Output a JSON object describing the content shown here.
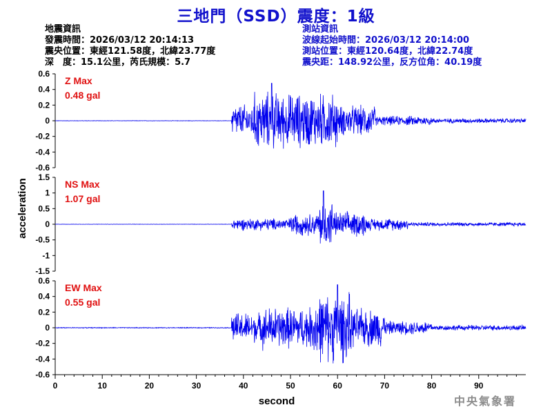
{
  "title": "三地門（SSD）震度：1級",
  "quake_info": {
    "heading": "地震資訊",
    "origin_time": "發震時間：2026/03/12 20:14:13",
    "epicenter": "震央位置：東經121.58度，北緯23.77度",
    "depth_mag": "深　度：15.1公里，芮氏規模：5.7"
  },
  "station_info": {
    "heading": "測站資訊",
    "wave_start": "波線起始時間：2026/03/12 20:14:00",
    "location": "測站位置：東經120.64度，北緯22.74度",
    "distance": "震央距：148.92公里，反方位角：40.19度"
  },
  "agency": "中央氣象署",
  "chart_data": [
    {
      "type": "line",
      "component": "Z",
      "max_label": "Z Max",
      "max_value": "0.48 gal",
      "xlim": [
        0,
        100
      ],
      "ylim": [
        -0.6,
        0.6
      ],
      "yticks": [
        "0.6",
        "0.4",
        "0.2",
        "0",
        "-0.2",
        "-0.4",
        "-0.6"
      ],
      "color": "#0000ee",
      "envelope": {
        "onset_s": 37.5,
        "peak_amplitude": 0.48,
        "peak_time_s": 46,
        "segments": [
          [
            0,
            37.5,
            0.003
          ],
          [
            37.5,
            42,
            0.24
          ],
          [
            42,
            47,
            0.42
          ],
          [
            47,
            60,
            0.4
          ],
          [
            60,
            68,
            0.22
          ],
          [
            68,
            80,
            0.07
          ],
          [
            80,
            100,
            0.035
          ]
        ]
      }
    },
    {
      "type": "line",
      "component": "NS",
      "max_label": "NS Max",
      "max_value": "1.07 gal",
      "xlim": [
        0,
        100
      ],
      "ylim": [
        -1.5,
        1.5
      ],
      "yticks": [
        "1.5",
        "1",
        "0.5",
        "0",
        "-0.5",
        "-1",
        "-1.5"
      ],
      "color": "#0000ee",
      "envelope": {
        "onset_s": 37.5,
        "peak_amplitude": 1.07,
        "peak_time_s": 57,
        "segments": [
          [
            0,
            37.5,
            0.006
          ],
          [
            37.5,
            50,
            0.22
          ],
          [
            50,
            56,
            0.4
          ],
          [
            56,
            59,
            0.85
          ],
          [
            59,
            66,
            0.45
          ],
          [
            66,
            75,
            0.22
          ],
          [
            75,
            100,
            0.07
          ]
        ]
      }
    },
    {
      "type": "line",
      "component": "EW",
      "max_label": "EW Max",
      "max_value": "0.55 gal",
      "xlim": [
        0,
        100
      ],
      "ylim": [
        -0.6,
        0.6
      ],
      "yticks": [
        "0.6",
        "0.4",
        "0.2",
        "0",
        "-0.2",
        "-0.4",
        "-0.6"
      ],
      "color": "#0000ee",
      "envelope": {
        "onset_s": 37.5,
        "peak_amplitude": 0.55,
        "peak_time_s": 60,
        "segments": [
          [
            0,
            37.5,
            0.006
          ],
          [
            37.5,
            44,
            0.22
          ],
          [
            44,
            55,
            0.3
          ],
          [
            55,
            63,
            0.5
          ],
          [
            63,
            70,
            0.28
          ],
          [
            70,
            80,
            0.1
          ],
          [
            80,
            100,
            0.04
          ]
        ]
      }
    }
  ],
  "x_axis": {
    "label": "second",
    "ticks": [
      "0",
      "10",
      "20",
      "30",
      "40",
      "50",
      "60",
      "70",
      "80",
      "90"
    ]
  },
  "y_axis": {
    "label": "acceleration"
  }
}
